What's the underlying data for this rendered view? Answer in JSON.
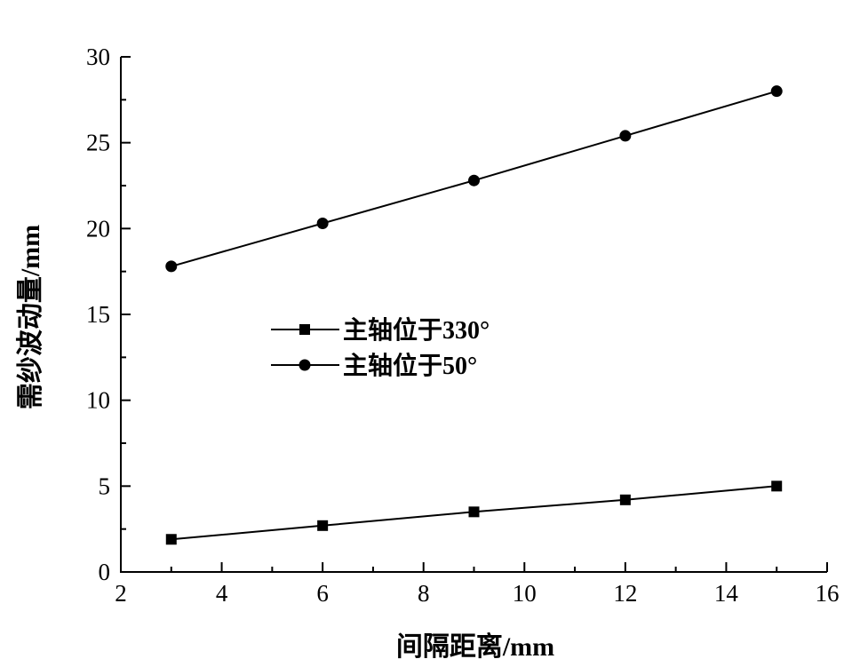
{
  "chart_data": {
    "type": "line",
    "xlabel": "间隔距离/mm",
    "ylabel": "需纱波动量/mm",
    "xlim": [
      2,
      16
    ],
    "ylim": [
      0,
      30
    ],
    "xticks": [
      "2",
      "4",
      "6",
      "8",
      "10",
      "12",
      "14",
      "16"
    ],
    "yticks": [
      "0",
      "5",
      "10",
      "15",
      "20",
      "25",
      "30"
    ],
    "grid": false,
    "legend_position": "center-left",
    "x": [
      3,
      6,
      9,
      12,
      15
    ],
    "series": [
      {
        "name": "主轴位于330°",
        "marker": "square",
        "color": "#000000",
        "values": [
          1.9,
          2.7,
          3.5,
          4.2,
          5.0
        ]
      },
      {
        "name": "主轴位于50°",
        "marker": "circle",
        "color": "#000000",
        "values": [
          17.8,
          20.3,
          22.8,
          25.4,
          28.0
        ]
      }
    ]
  }
}
